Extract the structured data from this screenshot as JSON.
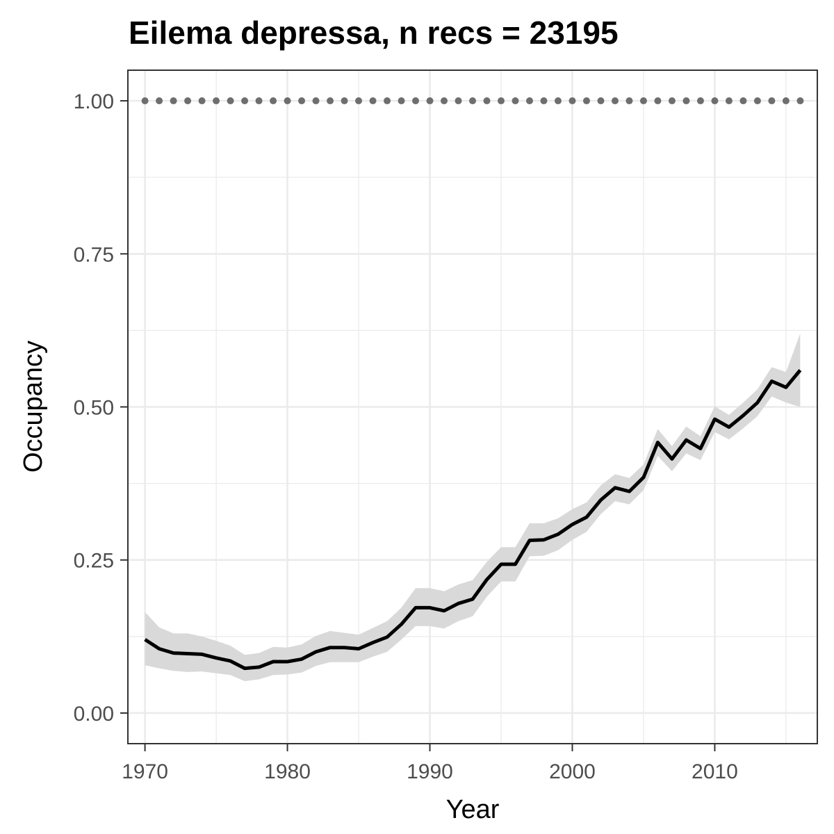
{
  "chart_data": {
    "type": "line",
    "title": "Eilema depressa, n recs = 23195",
    "xlabel": "Year",
    "ylabel": "Occupancy",
    "xlim": [
      1968.8,
      2017.2
    ],
    "ylim": [
      -0.05,
      1.05
    ],
    "x_ticks": [
      1970,
      1980,
      1990,
      2000,
      2010
    ],
    "x_tick_labels": [
      "1970",
      "1980",
      "1990",
      "2000",
      "2010"
    ],
    "y_ticks": [
      0,
      0.25,
      0.5,
      0.75,
      1
    ],
    "y_tick_labels": [
      "0.00",
      "0.25",
      "0.50",
      "0.75",
      "1.00"
    ],
    "grid": true,
    "legend": "none",
    "colors": {
      "line": "#000000",
      "ribbon": "#d9d9d9",
      "dots": "#6e6e6e",
      "grid": "#ebebeb",
      "panel_border": "#333333"
    },
    "x": [
      1970,
      1971,
      1972,
      1973,
      1974,
      1975,
      1976,
      1977,
      1978,
      1979,
      1980,
      1981,
      1982,
      1983,
      1984,
      1985,
      1986,
      1987,
      1988,
      1989,
      1990,
      1991,
      1992,
      1993,
      1994,
      1995,
      1996,
      1997,
      1998,
      1999,
      2000,
      2001,
      2002,
      2003,
      2004,
      2005,
      2006,
      2007,
      2008,
      2009,
      2010,
      2011,
      2012,
      2013,
      2014,
      2015,
      2016
    ],
    "series": [
      {
        "values": [
          0.12,
          0.105,
          0.098,
          0.097,
          0.096,
          0.09,
          0.085,
          0.073,
          0.075,
          0.084,
          0.084,
          0.088,
          0.1,
          0.107,
          0.107,
          0.105,
          0.115,
          0.124,
          0.145,
          0.172,
          0.172,
          0.167,
          0.179,
          0.186,
          0.218,
          0.243,
          0.243,
          0.282,
          0.283,
          0.292,
          0.308,
          0.32,
          0.348,
          0.368,
          0.362,
          0.385,
          0.442,
          0.415,
          0.446,
          0.432,
          0.48,
          0.467,
          0.486,
          0.507,
          0.542,
          0.532,
          0.56
        ],
        "lower": [
          0.078,
          0.073,
          0.069,
          0.067,
          0.068,
          0.065,
          0.062,
          0.052,
          0.055,
          0.062,
          0.063,
          0.066,
          0.077,
          0.083,
          0.083,
          0.083,
          0.092,
          0.1,
          0.12,
          0.142,
          0.142,
          0.138,
          0.15,
          0.158,
          0.19,
          0.215,
          0.215,
          0.256,
          0.257,
          0.266,
          0.283,
          0.296,
          0.325,
          0.346,
          0.341,
          0.364,
          0.42,
          0.395,
          0.424,
          0.413,
          0.459,
          0.447,
          0.465,
          0.485,
          0.517,
          0.507,
          0.5
        ],
        "upper": [
          0.165,
          0.14,
          0.13,
          0.13,
          0.125,
          0.118,
          0.11,
          0.095,
          0.098,
          0.108,
          0.107,
          0.112,
          0.126,
          0.134,
          0.131,
          0.128,
          0.139,
          0.15,
          0.172,
          0.204,
          0.204,
          0.199,
          0.21,
          0.217,
          0.247,
          0.271,
          0.271,
          0.31,
          0.31,
          0.318,
          0.333,
          0.344,
          0.372,
          0.39,
          0.384,
          0.406,
          0.464,
          0.436,
          0.468,
          0.452,
          0.501,
          0.487,
          0.507,
          0.529,
          0.565,
          0.557,
          0.62
        ]
      },
      {
        "style": "dotted",
        "values": [
          1,
          1,
          1,
          1,
          1,
          1,
          1,
          1,
          1,
          1,
          1,
          1,
          1,
          1,
          1,
          1,
          1,
          1,
          1,
          1,
          1,
          1,
          1,
          1,
          1,
          1,
          1,
          1,
          1,
          1,
          1,
          1,
          1,
          1,
          1,
          1,
          1,
          1,
          1,
          1,
          1,
          1,
          1,
          1,
          1,
          1,
          1
        ]
      }
    ]
  }
}
